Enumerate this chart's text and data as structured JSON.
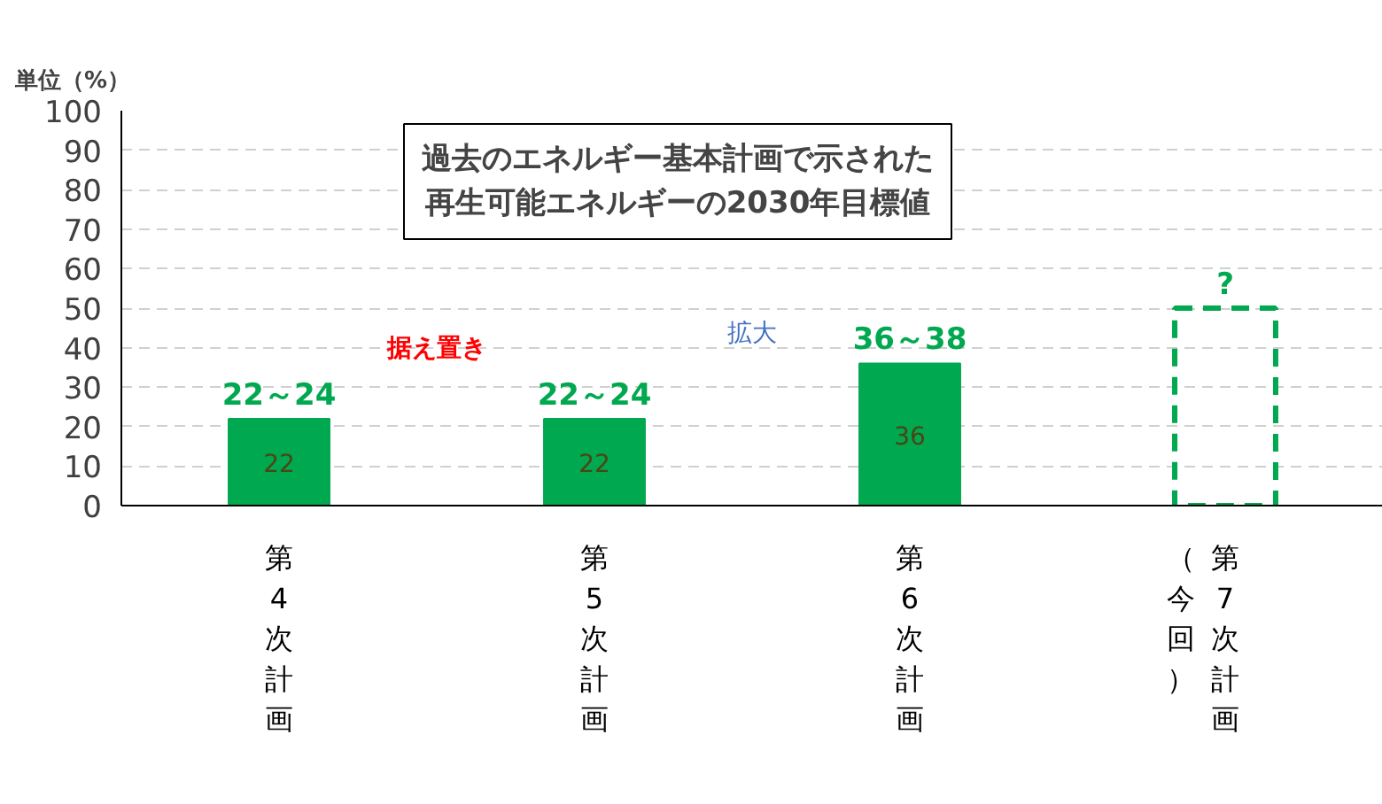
{
  "chart_data": {
    "type": "bar",
    "title": "過去のエネルギー基本計画で示された再生可能エネルギーの2030年目標値",
    "ylabel": "単位（%）",
    "categories": [
      "第4次計画",
      "第5次計画",
      "第6次計画",
      "第7次計画"
    ],
    "series": [
      {
        "color": "#00a84f",
        "values": [
          22,
          22,
          36,
          null
        ],
        "value_labels": [
          "22",
          "22",
          "36",
          null
        ]
      },
      {
        "color": "#00a84f",
        "values": [
          null,
          null,
          null,
          50
        ],
        "line_style": "dashed"
      }
    ],
    "ylim": [
      0,
      100
    ],
    "yticks": [
      0,
      10,
      20,
      30,
      40,
      50,
      60,
      70,
      80,
      90,
      100
    ],
    "grid": "y",
    "annotations": [
      {
        "text": "22～24",
        "x": "第4次計画",
        "y": 22
      },
      {
        "text": "22～24",
        "x": "第5次計画",
        "y": 22
      },
      {
        "text": "36～38",
        "x": "第6次計画",
        "y": 36
      },
      {
        "text": "?",
        "x": "第7次計画",
        "y": 50
      },
      "据え置き",
      "拡大",
      "（今回）"
    ]
  }
}
